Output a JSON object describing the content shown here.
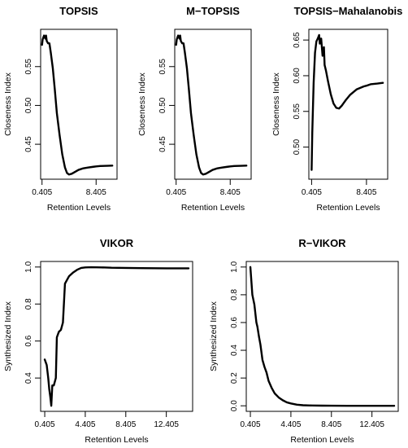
{
  "chart_data": [
    {
      "type": "line",
      "title": "TOPSIS",
      "xlabel": "Retention Levels",
      "ylabel": "Closeness Index",
      "xlim": [
        0.2,
        11.5
      ],
      "ylim": [
        0.405,
        0.598
      ],
      "xticks": [
        0.405,
        8.405
      ],
      "xtick_labels": [
        "0.405",
        "8.405"
      ],
      "yticks": [
        0.45,
        0.5,
        0.55
      ],
      "ytick_labels": [
        "0.45",
        "0.50",
        "0.55"
      ],
      "grid": false,
      "series": [
        {
          "x": [
            0.405,
            0.5,
            0.7,
            0.9,
            1.0,
            1.1,
            1.3,
            1.5,
            1.7,
            2.0,
            2.3,
            2.6,
            3.0,
            3.4,
            3.8,
            4.1,
            4.405,
            4.8,
            5.2,
            5.8,
            6.5,
            7.2,
            8.0,
            8.405,
            9.0,
            10.0,
            10.8
          ],
          "y": [
            0.578,
            0.585,
            0.59,
            0.586,
            0.59,
            0.583,
            0.58,
            0.58,
            0.568,
            0.548,
            0.52,
            0.49,
            0.462,
            0.437,
            0.42,
            0.413,
            0.411,
            0.412,
            0.414,
            0.417,
            0.419,
            0.42,
            0.421,
            0.4215,
            0.422,
            0.4222,
            0.4225
          ]
        }
      ]
    },
    {
      "type": "line",
      "title": "M−TOPSIS",
      "xlabel": "Retention Levels",
      "ylabel": "Closeness Index",
      "xlim": [
        0.2,
        11.5
      ],
      "ylim": [
        0.405,
        0.598
      ],
      "xticks": [
        0.405,
        8.405
      ],
      "xtick_labels": [
        "0.405",
        "8.405"
      ],
      "yticks": [
        0.45,
        0.5,
        0.55
      ],
      "ytick_labels": [
        "0.45",
        "0.50",
        "0.55"
      ],
      "grid": false,
      "series": [
        {
          "x": [
            0.405,
            0.5,
            0.7,
            0.9,
            1.0,
            1.1,
            1.3,
            1.5,
            1.7,
            2.0,
            2.3,
            2.6,
            3.0,
            3.4,
            3.8,
            4.1,
            4.405,
            4.8,
            5.2,
            5.8,
            6.5,
            7.2,
            8.0,
            8.405,
            9.0,
            10.0,
            10.8
          ],
          "y": [
            0.578,
            0.585,
            0.59,
            0.586,
            0.59,
            0.583,
            0.58,
            0.58,
            0.568,
            0.548,
            0.52,
            0.49,
            0.462,
            0.437,
            0.42,
            0.413,
            0.411,
            0.412,
            0.414,
            0.417,
            0.419,
            0.42,
            0.421,
            0.4215,
            0.422,
            0.4222,
            0.4225
          ]
        }
      ]
    },
    {
      "type": "line",
      "title": "TOPSIS−Mahalanobis",
      "xlabel": "Retention Levels",
      "ylabel": "Closeness Index",
      "xlim": [
        0.0,
        11.5
      ],
      "ylim": [
        0.455,
        0.665
      ],
      "xticks": [
        0.405,
        8.405
      ],
      "xtick_labels": [
        "0.405",
        "8.405"
      ],
      "yticks": [
        0.5,
        0.55,
        0.6,
        0.65
      ],
      "ytick_labels": [
        "0.50",
        "0.55",
        "0.60",
        "0.65"
      ],
      "grid": false,
      "series": [
        {
          "x": [
            0.405,
            0.5,
            0.7,
            0.9,
            1.1,
            1.3,
            1.5,
            1.6,
            1.8,
            2.0,
            2.2,
            2.3,
            2.5,
            2.8,
            3.2,
            3.6,
            4.0,
            4.405,
            4.8,
            5.4,
            6.0,
            7.0,
            8.0,
            8.405,
            9.0,
            10.0,
            10.8
          ],
          "y": [
            0.468,
            0.52,
            0.59,
            0.632,
            0.648,
            0.652,
            0.657,
            0.645,
            0.652,
            0.628,
            0.64,
            0.615,
            0.607,
            0.592,
            0.574,
            0.561,
            0.555,
            0.554,
            0.558,
            0.566,
            0.573,
            0.581,
            0.585,
            0.586,
            0.588,
            0.589,
            0.59
          ]
        }
      ]
    },
    {
      "type": "line",
      "title": "VIKOR",
      "xlabel": "Retention Levels",
      "ylabel": "Synthesized Index",
      "xlim": [
        0.0,
        15.0
      ],
      "ylim": [
        0.22,
        1.03
      ],
      "xticks": [
        0.405,
        4.405,
        8.405,
        12.405
      ],
      "xtick_labels": [
        "0.405",
        "4.405",
        "8.405",
        "12.405"
      ],
      "yticks": [
        0.4,
        0.6,
        0.8,
        1.0
      ],
      "ytick_labels": [
        "0.4",
        "0.6",
        "0.8",
        "1.0"
      ],
      "grid": false,
      "series": [
        {
          "x": [
            0.405,
            0.6,
            0.75,
            0.85,
            0.95,
            1.05,
            1.15,
            1.3,
            1.5,
            1.6,
            1.8,
            2.0,
            2.2,
            2.4,
            2.6,
            2.8,
            3.0,
            3.2,
            3.6,
            4.0,
            4.405,
            5.0,
            6.0,
            7.0,
            8.405,
            10.0,
            12.405,
            14.6
          ],
          "y": [
            0.5,
            0.47,
            0.4,
            0.34,
            0.3,
            0.25,
            0.36,
            0.36,
            0.4,
            0.62,
            0.65,
            0.66,
            0.7,
            0.91,
            0.93,
            0.95,
            0.96,
            0.97,
            0.985,
            0.995,
            0.998,
            0.999,
            0.998,
            0.996,
            0.995,
            0.994,
            0.993,
            0.993
          ]
        }
      ]
    },
    {
      "type": "line",
      "title": "R−VIKOR",
      "xlabel": "Retention Levels",
      "ylabel": "Synthesized Index",
      "xlim": [
        0.0,
        15.0
      ],
      "ylim": [
        -0.04,
        1.04
      ],
      "xticks": [
        0.405,
        4.405,
        8.405,
        12.405
      ],
      "xtick_labels": [
        "0.405",
        "4.405",
        "8.405",
        "12.405"
      ],
      "yticks": [
        0.0,
        0.2,
        0.4,
        0.6,
        0.8,
        1.0
      ],
      "ytick_labels": [
        "0.0",
        "0.2",
        "0.4",
        "0.6",
        "0.8",
        "1.0"
      ],
      "grid": false,
      "series": [
        {
          "x": [
            0.405,
            0.6,
            0.8,
            1.0,
            1.1,
            1.25,
            1.4,
            1.6,
            1.8,
            2.0,
            2.2,
            2.5,
            2.8,
            3.2,
            3.6,
            4.0,
            4.405,
            5.0,
            5.6,
            6.5,
            7.5,
            8.405,
            10.0,
            12.405,
            14.6
          ],
          "y": [
            1.0,
            0.8,
            0.73,
            0.6,
            0.57,
            0.5,
            0.44,
            0.33,
            0.28,
            0.24,
            0.18,
            0.13,
            0.09,
            0.06,
            0.04,
            0.025,
            0.017,
            0.008,
            0.004,
            0.002,
            0.001,
            0.0005,
            0.0,
            0.0,
            0.0
          ]
        }
      ]
    }
  ]
}
